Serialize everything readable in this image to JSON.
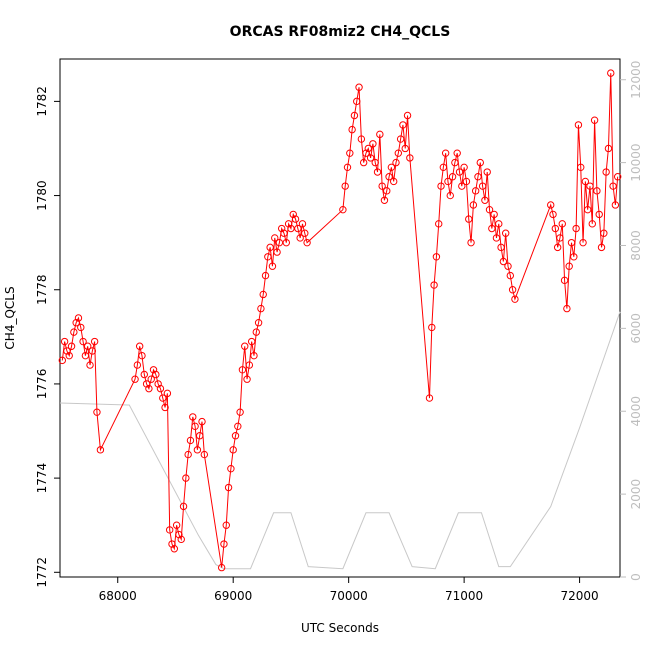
{
  "chart_data": {
    "type": "line",
    "title": "ORCAS RF08miz2 CH4_QCLS",
    "xlabel": "UTC Seconds",
    "ylabel": "CH4_QCLS",
    "xlim": [
      67500,
      72350
    ],
    "ylim": [
      1771.9,
      1782.9
    ],
    "y2lim": [
      0,
      12500
    ],
    "x_ticks": [
      68000,
      69000,
      70000,
      71000,
      72000
    ],
    "y_ticks": [
      1772,
      1774,
      1776,
      1778,
      1780,
      1782
    ],
    "y2_ticks": [
      0,
      2000,
      4000,
      6000,
      8000,
      10000,
      12000
    ],
    "grid": false,
    "series": [
      {
        "color": "#ff0000",
        "marker": "open-circle",
        "x": [
          67520,
          67540,
          67560,
          67580,
          67600,
          67620,
          67640,
          67660,
          67680,
          67700,
          67720,
          67740,
          67760,
          67780,
          67800,
          67820,
          67850,
          68150,
          68170,
          68190,
          68210,
          68230,
          68250,
          68270,
          68290,
          68310,
          68330,
          68350,
          68370,
          68390,
          68410,
          68430,
          68450,
          68470,
          68490,
          68510,
          68530,
          68550,
          68570,
          68590,
          68610,
          68630,
          68650,
          68670,
          68690,
          68710,
          68730,
          68750,
          68900,
          68920,
          68940,
          68960,
          68980,
          69000,
          69020,
          69040,
          69060,
          69080,
          69100,
          69120,
          69140,
          69160,
          69180,
          69200,
          69220,
          69240,
          69260,
          69280,
          69300,
          69320,
          69340,
          69360,
          69380,
          69400,
          69420,
          69440,
          69460,
          69480,
          69500,
          69520,
          69540,
          69560,
          69580,
          69600,
          69620,
          69640,
          69950,
          69970,
          69990,
          70010,
          70030,
          70050,
          70070,
          70090,
          70110,
          70130,
          70150,
          70170,
          70190,
          70210,
          70230,
          70250,
          70270,
          70290,
          70310,
          70330,
          70350,
          70370,
          70390,
          70410,
          70430,
          70450,
          70470,
          70490,
          70510,
          70530,
          70700,
          70720,
          70740,
          70760,
          70780,
          70800,
          70820,
          70840,
          70860,
          70880,
          70900,
          70920,
          70940,
          70960,
          70980,
          71000,
          71020,
          71040,
          71060,
          71080,
          71100,
          71120,
          71140,
          71160,
          71180,
          71200,
          71220,
          71240,
          71260,
          71280,
          71300,
          71320,
          71340,
          71360,
          71380,
          71400,
          71420,
          71440,
          71750,
          71770,
          71790,
          71810,
          71830,
          71850,
          71870,
          71890,
          71910,
          71930,
          71950,
          71970,
          71990,
          72010,
          72030,
          72050,
          72070,
          72090,
          72110,
          72130,
          72150,
          72170,
          72190,
          72210,
          72230,
          72250,
          72270,
          72290,
          72310,
          72330
        ],
        "y": [
          1776.5,
          1776.9,
          1776.7,
          1776.6,
          1776.8,
          1777.1,
          1777.3,
          1777.4,
          1777.2,
          1776.9,
          1776.6,
          1776.8,
          1776.4,
          1776.7,
          1776.9,
          1775.4,
          1774.6,
          1776.1,
          1776.4,
          1776.8,
          1776.6,
          1776.2,
          1776.0,
          1775.9,
          1776.1,
          1776.3,
          1776.2,
          1776.0,
          1775.9,
          1775.7,
          1775.5,
          1775.8,
          1772.9,
          1772.6,
          1772.5,
          1773.0,
          1772.8,
          1772.7,
          1773.4,
          1774.0,
          1774.5,
          1774.8,
          1775.3,
          1775.1,
          1774.6,
          1774.9,
          1775.2,
          1774.5,
          1772.1,
          1772.6,
          1773.0,
          1773.8,
          1774.2,
          1774.6,
          1774.9,
          1775.1,
          1775.4,
          1776.3,
          1776.8,
          1776.1,
          1776.4,
          1776.9,
          1776.6,
          1777.1,
          1777.3,
          1777.6,
          1777.9,
          1778.3,
          1778.7,
          1778.9,
          1778.5,
          1779.1,
          1778.8,
          1779.0,
          1779.3,
          1779.2,
          1779.0,
          1779.4,
          1779.3,
          1779.6,
          1779.5,
          1779.3,
          1779.1,
          1779.4,
          1779.2,
          1779.0,
          1779.7,
          1780.2,
          1780.6,
          1780.9,
          1781.4,
          1781.7,
          1782.0,
          1782.3,
          1781.2,
          1780.7,
          1780.9,
          1781.0,
          1780.8,
          1781.1,
          1780.7,
          1780.5,
          1781.3,
          1780.2,
          1779.9,
          1780.1,
          1780.4,
          1780.6,
          1780.3,
          1780.7,
          1780.9,
          1781.2,
          1781.5,
          1781.0,
          1781.7,
          1780.8,
          1775.7,
          1777.2,
          1778.1,
          1778.7,
          1779.4,
          1780.2,
          1780.6,
          1780.9,
          1780.3,
          1780.0,
          1780.4,
          1780.7,
          1780.9,
          1780.5,
          1780.2,
          1780.6,
          1780.3,
          1779.5,
          1779.0,
          1779.8,
          1780.1,
          1780.4,
          1780.7,
          1780.2,
          1779.9,
          1780.5,
          1779.7,
          1779.3,
          1779.6,
          1779.1,
          1779.4,
          1778.9,
          1778.6,
          1779.2,
          1778.5,
          1778.3,
          1778.0,
          1777.8,
          1779.8,
          1779.6,
          1779.3,
          1778.9,
          1779.1,
          1779.4,
          1778.2,
          1777.6,
          1778.5,
          1779.0,
          1778.7,
          1779.3,
          1781.5,
          1780.6,
          1779.0,
          1780.3,
          1779.7,
          1780.2,
          1779.4,
          1781.6,
          1780.1,
          1779.6,
          1778.9,
          1779.2,
          1780.5,
          1781.0,
          1782.6,
          1780.2,
          1779.8,
          1780.4
        ]
      },
      {
        "color": "#c8c8c8",
        "marker": "none",
        "axis": "right",
        "x": [
          67500,
          68100,
          68700,
          68850,
          68920,
          69150,
          69350,
          69500,
          69650,
          69950,
          70150,
          70350,
          70550,
          70750,
          70950,
          71150,
          71300,
          71400,
          71750,
          72000,
          72350
        ],
        "y": [
          4200,
          4150,
          1000,
          300,
          200,
          200,
          1550,
          1550,
          250,
          200,
          1550,
          1550,
          250,
          200,
          1550,
          1550,
          250,
          250,
          1700,
          3600,
          6400
        ]
      }
    ]
  }
}
